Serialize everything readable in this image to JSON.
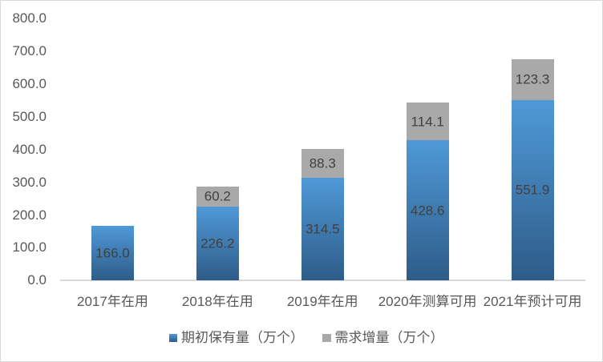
{
  "chart": {
    "type": "stacked-bar",
    "title": "",
    "categories": [
      "2017年在用",
      "2018年在用",
      "2019年在用",
      "2020年测算可用",
      "2021年预计可用"
    ],
    "series": [
      {
        "name": "期初保有量（万个）",
        "values": [
          166.0,
          226.2,
          314.5,
          428.6,
          551.9
        ],
        "labels": [
          "166.0",
          "226.2",
          "314.5",
          "428.6",
          "551.9"
        ],
        "fill": {
          "type": "gradient",
          "top": "#4F99D8",
          "bottom": "#2E5C88"
        }
      },
      {
        "name": "需求增量（万个）",
        "values": [
          0,
          60.2,
          88.3,
          114.1,
          123.3
        ],
        "labels": [
          "",
          "60.2",
          "88.3",
          "114.1",
          "123.3"
        ],
        "fill": {
          "type": "solid",
          "color": "#A9A9A9"
        }
      }
    ],
    "y_axis": {
      "min": 0,
      "max": 800,
      "step": 100,
      "tick_labels": [
        "0.0",
        "100.0",
        "200.0",
        "300.0",
        "400.0",
        "500.0",
        "600.0",
        "700.0",
        "800.0"
      ]
    },
    "gridlines": false,
    "legend": {
      "position": "bottom",
      "items": [
        "期初保有量（万个）",
        "需求增量（万个）"
      ]
    },
    "colors": {
      "data_label_text": "#404040",
      "axis_text": "#595959",
      "legend_text": "#595959",
      "axis_line": "#D9D9D9",
      "chart_border": "#D9D9D9",
      "background": "#FFFFFF"
    }
  },
  "chart_data": {
    "type": "bar",
    "stacked": true,
    "categories": [
      "2017年在用",
      "2018年在用",
      "2019年在用",
      "2020年测算可用",
      "2021年预计可用"
    ],
    "series": [
      {
        "name": "期初保有量（万个）",
        "values": [
          166.0,
          226.2,
          314.5,
          428.6,
          551.9
        ]
      },
      {
        "name": "需求增量（万个）",
        "values": [
          0,
          60.2,
          88.3,
          114.1,
          123.3
        ]
      }
    ],
    "title": "",
    "xlabel": "",
    "ylabel": "",
    "ylim": [
      0,
      800
    ],
    "ytick_interval": 100,
    "grid": false,
    "legend_position": "bottom"
  }
}
